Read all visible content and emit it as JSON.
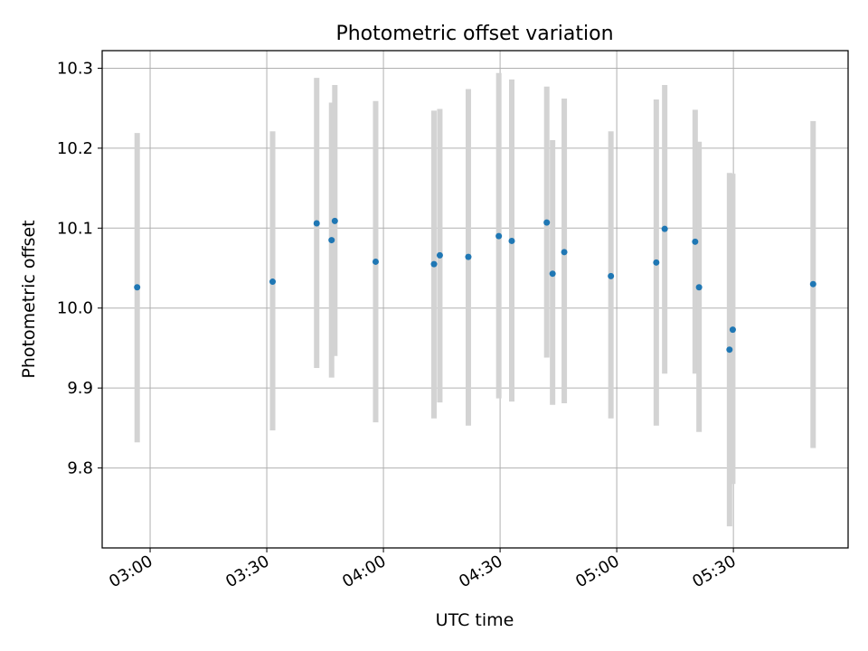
{
  "chart_data": {
    "type": "scatter",
    "title": "Photometric offset variation",
    "xlabel": "UTC time",
    "ylabel": "Photometric offset",
    "xlim": [
      "02:47:40",
      "05:59:30"
    ],
    "ylim": [
      9.7,
      10.322
    ],
    "x_ticks": [
      "03:00",
      "03:30",
      "04:00",
      "04:30",
      "05:00",
      "05:30"
    ],
    "y_ticks": [
      9.8,
      9.9,
      10.0,
      10.1,
      10.2,
      10.3
    ],
    "grid": true,
    "marker_color": "#1f77b4",
    "errorbar_color": "#d3d3d3",
    "points": [
      {
        "x": "02:56:40",
        "y": 10.026,
        "yerr_low": 9.832,
        "yerr_high": 10.219
      },
      {
        "x": "03:31:30",
        "y": 10.033,
        "yerr_low": 9.847,
        "yerr_high": 10.221
      },
      {
        "x": "03:42:50",
        "y": 10.106,
        "yerr_low": 9.925,
        "yerr_high": 10.288
      },
      {
        "x": "03:46:40",
        "y": 10.085,
        "yerr_low": 9.913,
        "yerr_high": 10.257
      },
      {
        "x": "03:47:30",
        "y": 10.109,
        "yerr_low": 9.94,
        "yerr_high": 10.279
      },
      {
        "x": "03:58:00",
        "y": 10.058,
        "yerr_low": 9.857,
        "yerr_high": 10.259
      },
      {
        "x": "04:13:00",
        "y": 10.055,
        "yerr_low": 9.862,
        "yerr_high": 10.247
      },
      {
        "x": "04:14:30",
        "y": 10.066,
        "yerr_low": 9.882,
        "yerr_high": 10.249
      },
      {
        "x": "04:21:50",
        "y": 10.064,
        "yerr_low": 9.853,
        "yerr_high": 10.274
      },
      {
        "x": "04:29:40",
        "y": 10.09,
        "yerr_low": 9.887,
        "yerr_high": 10.294
      },
      {
        "x": "04:33:00",
        "y": 10.084,
        "yerr_low": 9.883,
        "yerr_high": 10.286
      },
      {
        "x": "04:42:00",
        "y": 10.107,
        "yerr_low": 9.938,
        "yerr_high": 10.277
      },
      {
        "x": "04:43:30",
        "y": 10.043,
        "yerr_low": 9.879,
        "yerr_high": 10.21
      },
      {
        "x": "04:46:30",
        "y": 10.07,
        "yerr_low": 9.881,
        "yerr_high": 10.262
      },
      {
        "x": "04:58:30",
        "y": 10.04,
        "yerr_low": 9.862,
        "yerr_high": 10.221
      },
      {
        "x": "05:10:10",
        "y": 10.057,
        "yerr_low": 9.853,
        "yerr_high": 10.261
      },
      {
        "x": "05:12:20",
        "y": 10.099,
        "yerr_low": 9.918,
        "yerr_high": 10.279
      },
      {
        "x": "05:20:10",
        "y": 10.083,
        "yerr_low": 9.918,
        "yerr_high": 10.248
      },
      {
        "x": "05:21:10",
        "y": 10.026,
        "yerr_low": 9.845,
        "yerr_high": 10.208
      },
      {
        "x": "05:29:00",
        "y": 9.948,
        "yerr_low": 9.727,
        "yerr_high": 10.169
      },
      {
        "x": "05:29:50",
        "y": 9.973,
        "yerr_low": 9.78,
        "yerr_high": 10.168
      },
      {
        "x": "05:50:30",
        "y": 10.03,
        "yerr_low": 9.825,
        "yerr_high": 10.234
      }
    ]
  }
}
